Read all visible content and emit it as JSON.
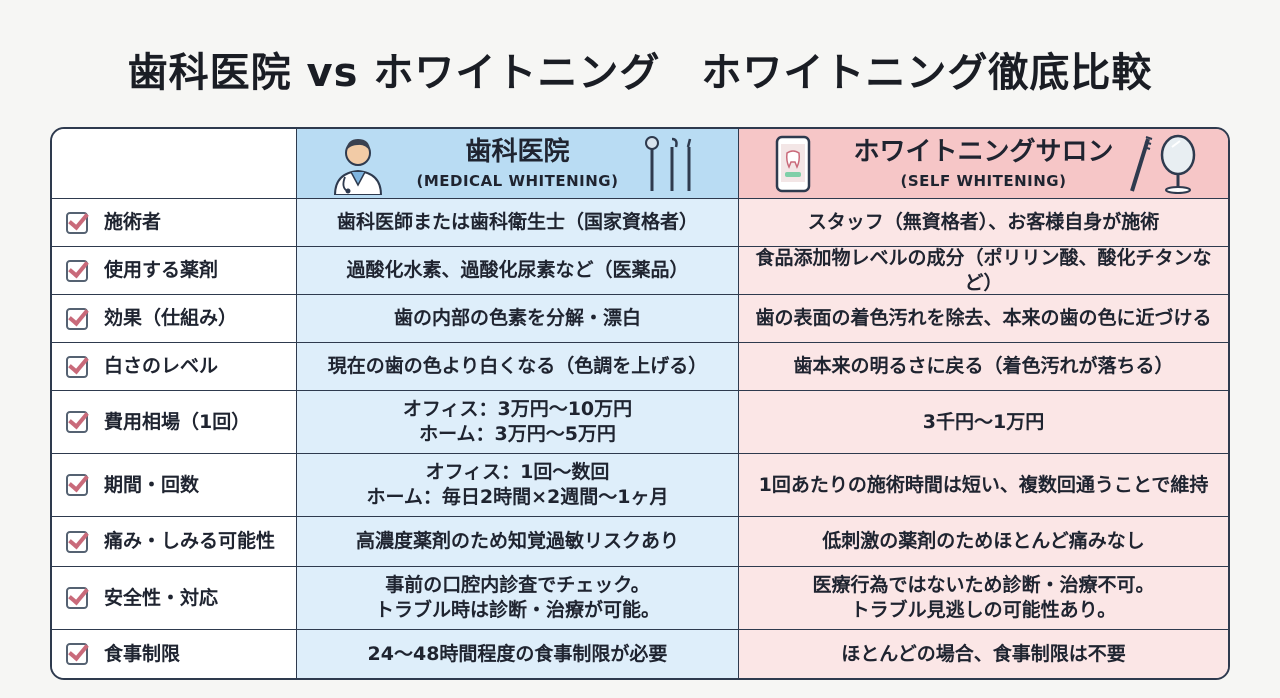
{
  "page": {
    "title": "歯科医院 vs ホワイトニング　ホワイトニング徹底比較"
  },
  "table": {
    "columns": [
      {
        "title": "歯科医院",
        "subtitle": "(MEDICAL WHITENING)",
        "icon_left": "doctor-icon",
        "icon_right": "dental-tools-icon"
      },
      {
        "title": "ホワイトニングサロン",
        "subtitle": "(SELF WHITENING)",
        "icon_left": "smartphone-tooth-icon",
        "icon_right": "toothbrush-mirror-icon"
      }
    ],
    "rows": [
      {
        "label": "施術者",
        "dental": [
          "歯科医師または歯科衛生士（国家資格者）"
        ],
        "salon": [
          "スタッフ（無資格者）、お客様自身が施術"
        ]
      },
      {
        "label": "使用する薬剤",
        "dental": [
          "過酸化水素、過酸化尿素など（医薬品）"
        ],
        "salon": [
          "食品添加物レベルの成分（ポリリン酸、酸化チタンなど）"
        ]
      },
      {
        "label": "効果（仕組み）",
        "dental": [
          "歯の内部の色素を分解・漂白"
        ],
        "salon": [
          "歯の表面の着色汚れを除去、本来の歯の色に近づける"
        ]
      },
      {
        "label": "白さのレベル",
        "dental": [
          "現在の歯の色より白くなる（色調を上げる）"
        ],
        "salon": [
          "歯本来の明るさに戻る（着色汚れが落ちる）"
        ]
      },
      {
        "label": "費用相場（1回）",
        "dental": [
          "オフィス：3万円～10万円",
          "ホーム：3万円～5万円"
        ],
        "salon": [
          "3千円～1万円"
        ]
      },
      {
        "label": "期間・回数",
        "dental": [
          "オフィス：1回～数回",
          "ホーム：毎日2時間×2週間～1ヶ月"
        ],
        "salon": [
          "1回あたりの施術時間は短い、複数回通うことで維持"
        ]
      },
      {
        "label": "痛み・しみる可能性",
        "dental": [
          "高濃度薬剤のため知覚過敏リスクあり"
        ],
        "salon": [
          "低刺激の薬剤のためほとんど痛みなし"
        ]
      },
      {
        "label": "安全性・対応",
        "dental": [
          "事前の口腔内診査でチェック。",
          "トラブル時は診断・治療が可能。"
        ],
        "salon": [
          "医療行為ではないため診断・治療不可。",
          "トラブル見逃しの可能性あり。"
        ]
      },
      {
        "label": "食事制限",
        "dental": [
          "24～48時間程度の食事制限が必要"
        ],
        "salon": [
          "ほとんどの場合、食事制限は不要"
        ]
      }
    ],
    "colors": {
      "dental_header": "#b9dcf3",
      "dental_body": "#deeefa",
      "salon_header": "#f6c6c7",
      "salon_body": "#fbe6e6",
      "check_mark": "#c96a7a",
      "border": "#2e3a4e"
    }
  }
}
